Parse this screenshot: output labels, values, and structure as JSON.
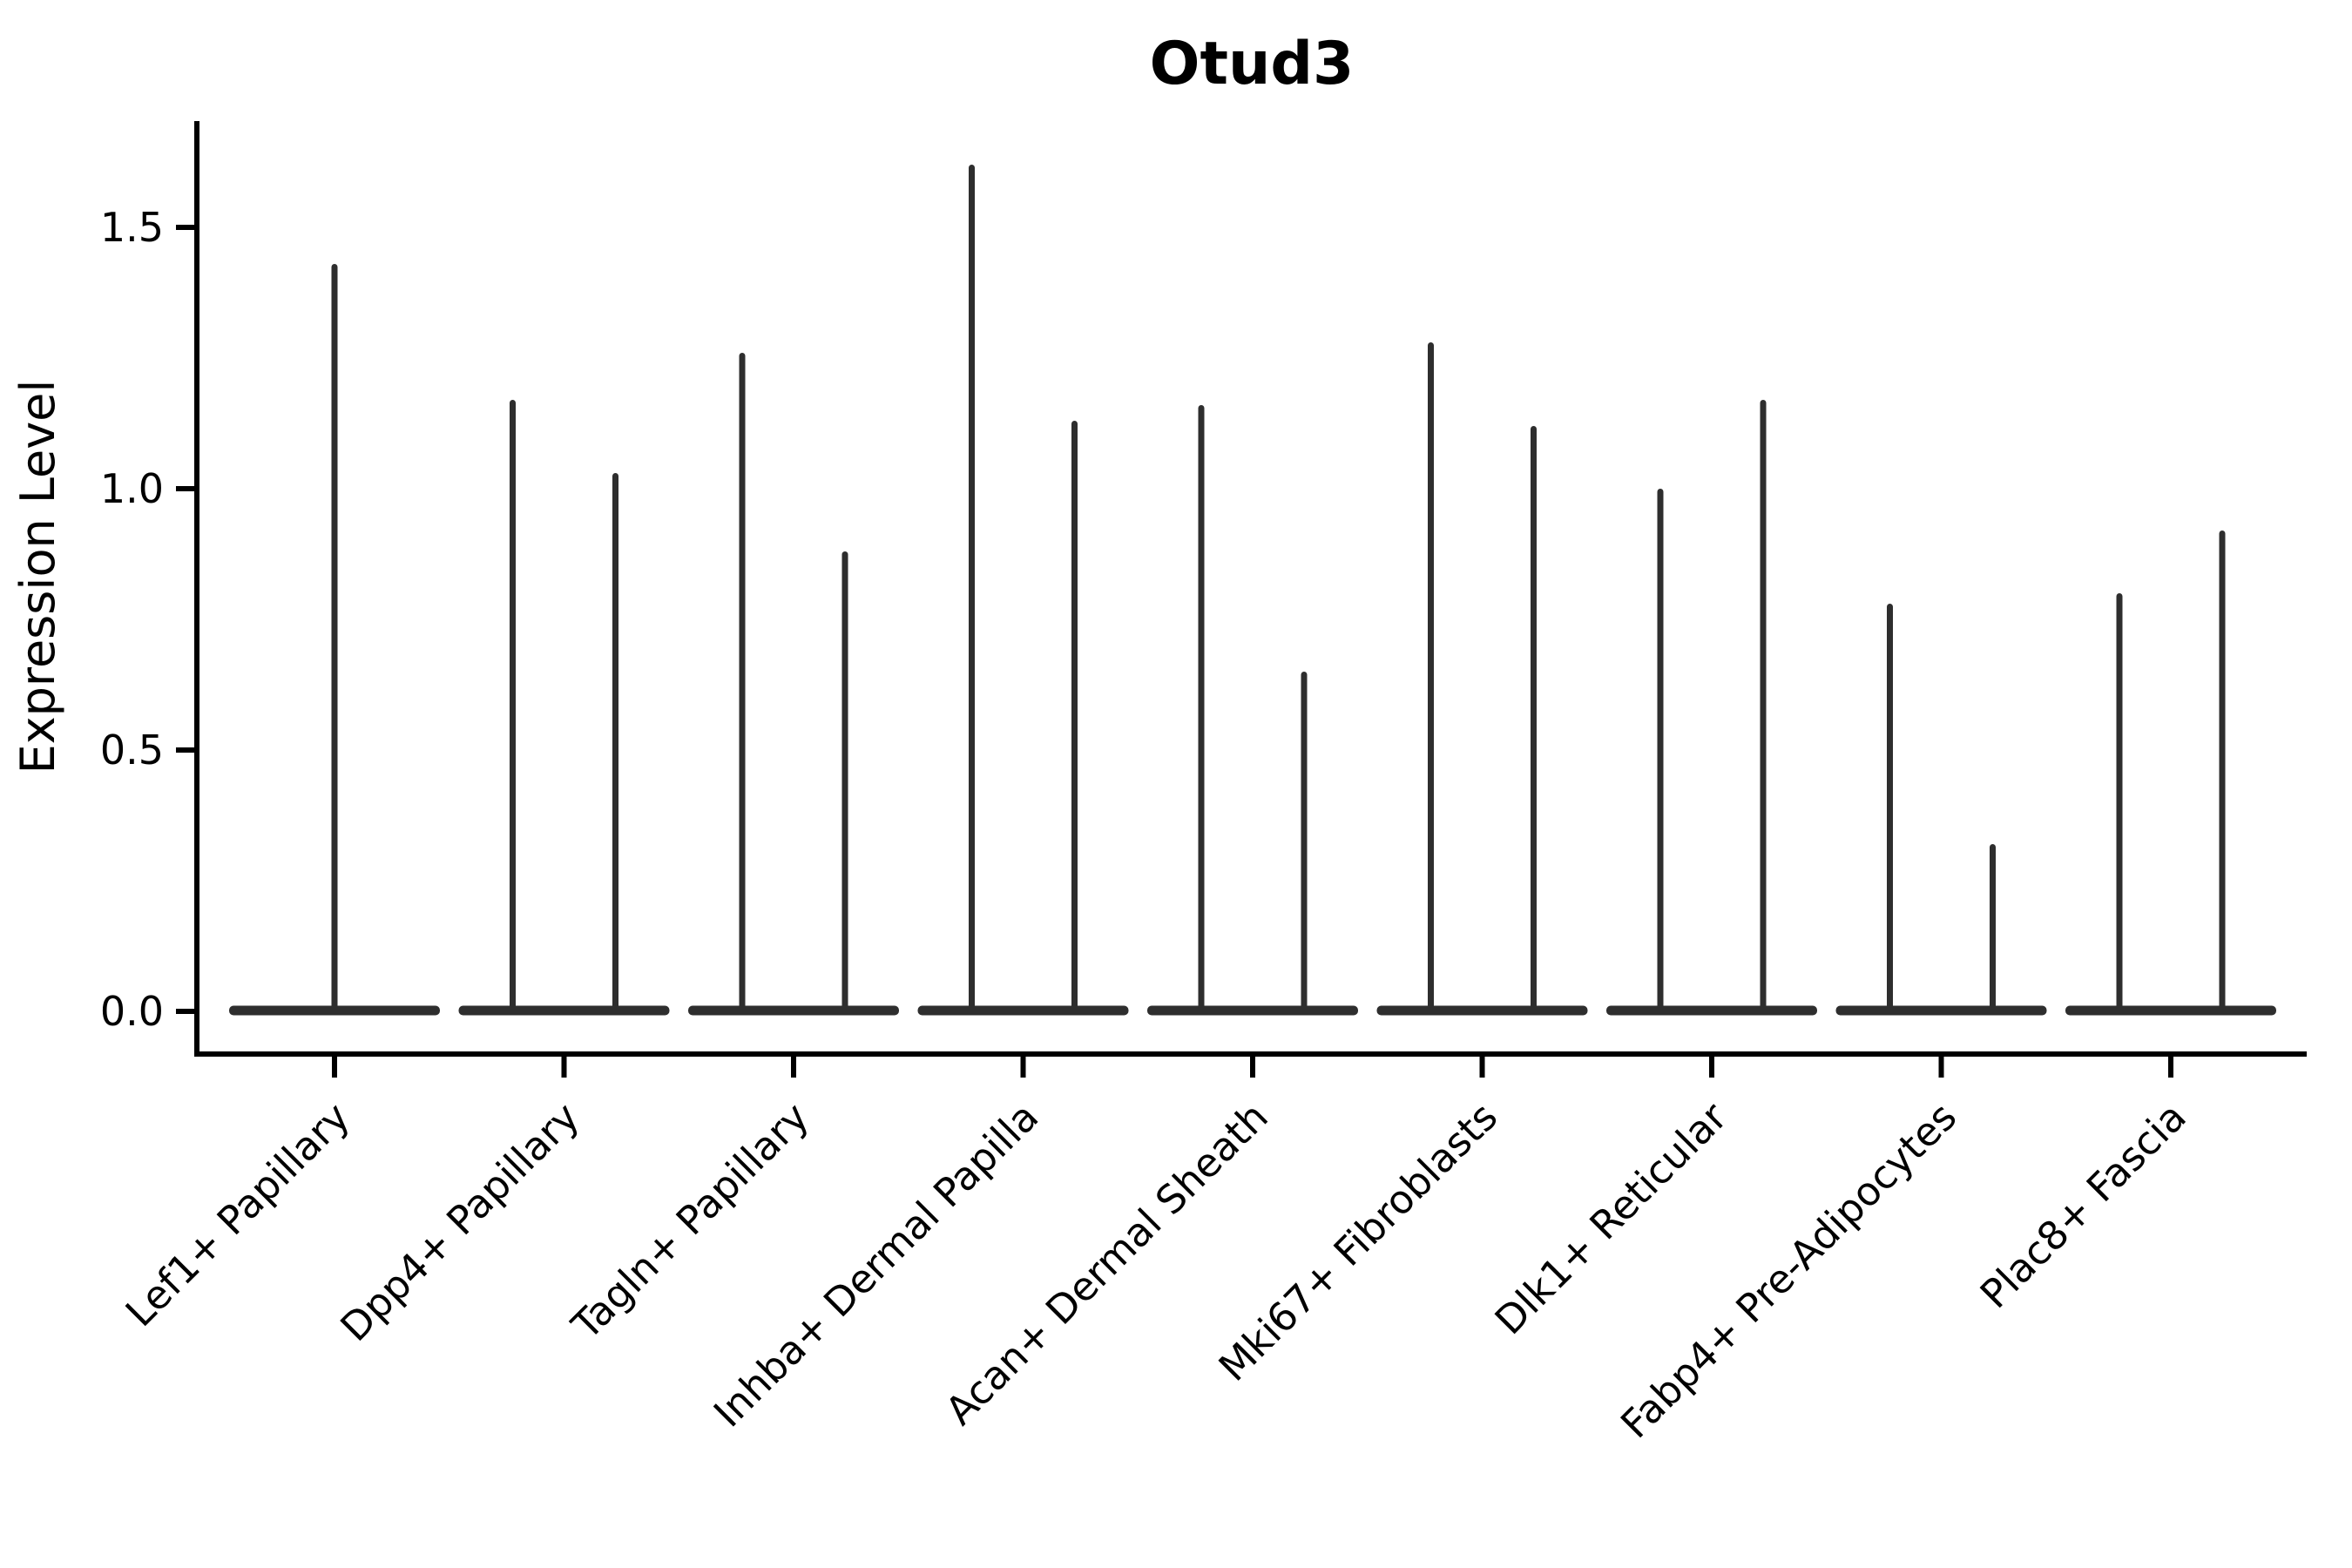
{
  "chart_data": {
    "type": "violin",
    "title": "Otud3",
    "xlabel": "",
    "ylabel": "Expression Level",
    "legend": false,
    "grid": false,
    "background_color": "#ffffff",
    "axis_color": "#000000",
    "violin_color": "#2e2e2e",
    "ylim": [
      -0.08,
      1.71
    ],
    "yticks": [
      {
        "value": 0.0,
        "label": "0.0"
      },
      {
        "value": 0.5,
        "label": "0.5"
      },
      {
        "value": 1.0,
        "label": "1.0"
      },
      {
        "value": 1.5,
        "label": "1.5"
      }
    ],
    "categories": [
      "Lef1+ Papillary",
      "Dpp4+ Papillary",
      "Tagln+ Papillary",
      "Inhba+ Dermal Papilla",
      "Acan+ Dermal Sheath",
      "Mki67+ Fibroblasts",
      "Dlk1+ Reticular",
      "Fabp4+ Pre-Adipocytes",
      "Plac8+ Fascia"
    ],
    "violins": [
      {
        "category": "Lef1+ Papillary",
        "spike_maxima": [
          1.43
        ],
        "base_value": 0.0
      },
      {
        "category": "Dpp4+ Papillary",
        "spike_maxima": [
          1.17,
          1.03
        ],
        "base_value": 0.0
      },
      {
        "category": "Tagln+ Papillary",
        "spike_maxima": [
          1.26,
          0.88
        ],
        "base_value": 0.0
      },
      {
        "category": "Inhba+ Dermal Papilla",
        "spike_maxima": [
          1.62,
          1.13
        ],
        "base_value": 0.0
      },
      {
        "category": "Acan+ Dermal Sheath",
        "spike_maxima": [
          1.16,
          0.65
        ],
        "base_value": 0.0
      },
      {
        "category": "Mki67+ Fibroblasts",
        "spike_maxima": [
          1.28,
          1.12
        ],
        "base_value": 0.0
      },
      {
        "category": "Dlk1+ Reticular",
        "spike_maxima": [
          1.0,
          1.17
        ],
        "base_value": 0.0
      },
      {
        "category": "Fabp4+ Pre-Adipocytes",
        "spike_maxima": [
          0.78,
          0.32
        ],
        "base_value": 0.0
      },
      {
        "category": "Plac8+ Fascia",
        "spike_maxima": [
          0.8,
          0.92
        ],
        "base_value": 0.0
      }
    ]
  }
}
